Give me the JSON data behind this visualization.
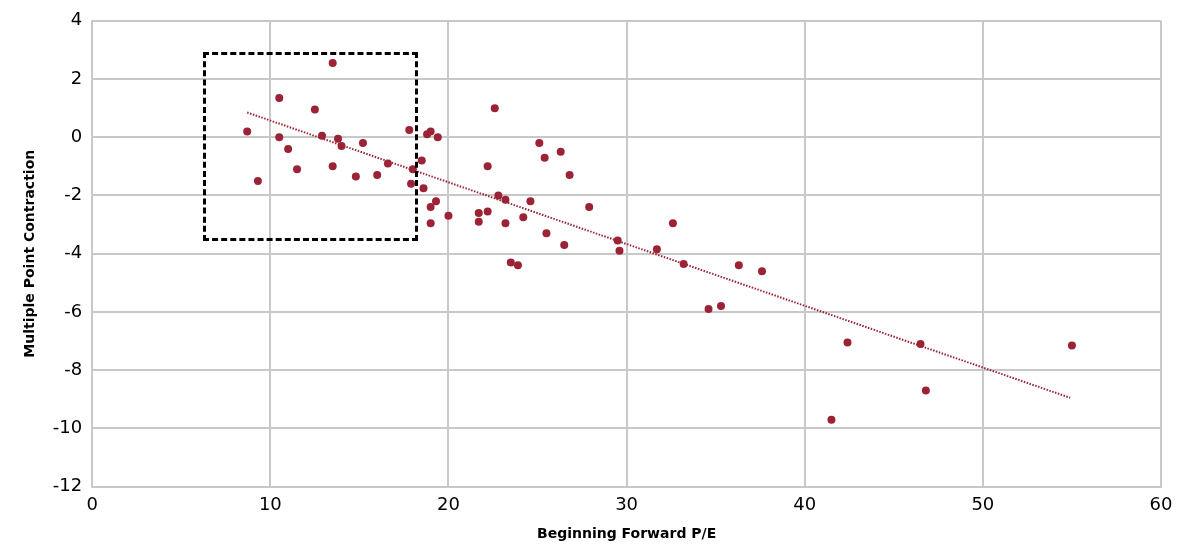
{
  "chart_data": {
    "type": "scatter",
    "xlabel": "Beginning Forward P/E",
    "ylabel": "Multiple Point Contraction",
    "xlim": [
      0,
      60
    ],
    "xticks": [
      0,
      10,
      20,
      30,
      40,
      50,
      60
    ],
    "ylim": [
      -12,
      4
    ],
    "yticks": [
      -12,
      -10,
      -8,
      -6,
      -4,
      -2,
      0,
      2,
      4
    ],
    "grid": true,
    "legend": false,
    "marker": "circle",
    "series": [
      {
        "type": "scatter",
        "color": "#9b2335",
        "x": [
          8.7,
          9.3,
          10.5,
          10.5,
          11.0,
          11.5,
          12.5,
          12.9,
          13.5,
          13.5,
          13.8,
          14.0,
          14.8,
          15.2,
          16.0,
          16.6,
          17.8,
          17.9,
          18.0,
          18.5,
          18.6,
          18.8,
          19.0,
          19.0,
          19.0,
          19.3,
          19.4,
          20.0,
          21.7,
          21.7,
          22.2,
          22.2,
          22.6,
          22.8,
          23.2,
          23.2,
          23.5,
          23.9,
          24.2,
          24.6,
          25.1,
          25.4,
          25.5,
          26.3,
          26.5,
          26.8,
          27.9,
          29.5,
          29.6,
          31.7,
          32.6,
          33.2,
          34.6,
          35.3,
          36.3,
          37.6,
          41.5,
          42.4,
          46.5,
          46.8,
          55.0
        ],
        "values": [
          0.2,
          -1.5,
          1.35,
          0,
          -0.4,
          -1.1,
          0.95,
          0.05,
          2.55,
          -1.0,
          -0.05,
          -0.3,
          -1.35,
          -0.2,
          -1.3,
          -0.9,
          0.25,
          -1.6,
          -1.1,
          -0.8,
          -1.75,
          0.1,
          0.2,
          -2.4,
          -2.95,
          -2.2,
          0,
          -2.7,
          -2.9,
          -2.6,
          -2.55,
          -1.0,
          1.0,
          -2.0,
          -2.15,
          -2.95,
          -4.3,
          -4.4,
          -2.75,
          -2.2,
          -0.2,
          -0.7,
          -3.3,
          -0.5,
          -3.7,
          -1.3,
          -2.4,
          -3.55,
          -3.9,
          -3.85,
          -2.95,
          -4.35,
          -5.9,
          -5.8,
          -4.4,
          -4.6,
          -9.7,
          -7.05,
          -7.1,
          -8.7,
          -7.15
        ]
      },
      {
        "type": "line",
        "color": "#9b2335",
        "marker": "none",
        "line_style": "dotted",
        "x": [
          8.7,
          54.9
        ],
        "values": [
          0.85,
          -8.95
        ]
      }
    ]
  }
}
